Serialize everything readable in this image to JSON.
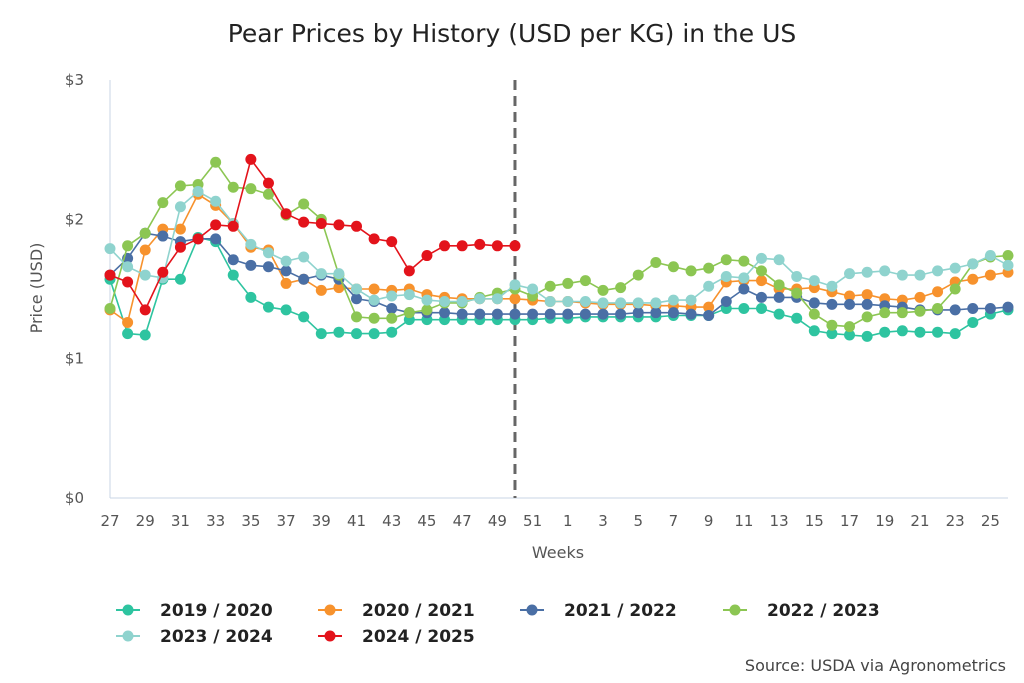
{
  "chart_data": {
    "type": "line",
    "title": "Pear Prices by History (USD per KG) in the US",
    "xlabel": "Weeks",
    "ylabel": "Price (USD)",
    "source": "Source: USDA via Agronometrics",
    "ylim": [
      0,
      3
    ],
    "y_ticks": [
      "$0",
      "$1",
      "$2",
      "$3"
    ],
    "x_weeks": [
      27,
      28,
      29,
      30,
      31,
      32,
      33,
      34,
      35,
      36,
      37,
      38,
      39,
      40,
      41,
      42,
      43,
      44,
      45,
      46,
      47,
      48,
      49,
      50,
      51,
      52,
      1,
      2,
      3,
      4,
      5,
      6,
      7,
      8,
      9,
      10,
      11,
      12,
      13,
      14,
      15,
      16,
      17,
      18,
      19,
      20,
      21,
      22,
      23,
      24,
      25,
      26
    ],
    "x_tick_labels": [
      "27",
      "29",
      "31",
      "33",
      "35",
      "37",
      "39",
      "41",
      "43",
      "45",
      "47",
      "49",
      "51",
      "1",
      "3",
      "5",
      "7",
      "9",
      "11",
      "13",
      "15",
      "17",
      "19",
      "21",
      "23",
      "25"
    ],
    "current_week_marker": 50,
    "legend_position": "bottom-left",
    "series": [
      {
        "name": "2019 / 2020",
        "color": "#2ec4a0",
        "values": [
          1.57,
          1.18,
          1.17,
          1.57,
          1.57,
          1.87,
          1.84,
          1.6,
          1.44,
          1.37,
          1.35,
          1.3,
          1.18,
          1.19,
          1.18,
          1.18,
          1.19,
          1.28,
          1.28,
          1.28,
          1.28,
          1.28,
          1.28,
          1.28,
          1.28,
          1.29,
          1.29,
          1.3,
          1.3,
          1.3,
          1.3,
          1.3,
          1.31,
          1.31,
          1.31,
          1.36,
          1.36,
          1.36,
          1.32,
          1.29,
          1.2,
          1.18,
          1.17,
          1.16,
          1.19,
          1.2,
          1.19,
          1.19,
          1.18,
          1.26,
          1.32,
          1.35
        ]
      },
      {
        "name": "2020 / 2021",
        "color": "#f7922d",
        "values": [
          1.35,
          1.26,
          1.78,
          1.93,
          1.93,
          2.18,
          2.1,
          1.97,
          1.8,
          1.78,
          1.54,
          1.57,
          1.49,
          1.51,
          1.5,
          1.5,
          1.49,
          1.5,
          1.46,
          1.44,
          1.43,
          1.43,
          1.43,
          1.43,
          1.42,
          1.41,
          1.41,
          1.4,
          1.39,
          1.39,
          1.39,
          1.38,
          1.38,
          1.37,
          1.37,
          1.55,
          1.56,
          1.56,
          1.5,
          1.5,
          1.51,
          1.48,
          1.45,
          1.46,
          1.43,
          1.42,
          1.44,
          1.48,
          1.55,
          1.57,
          1.6,
          1.62
        ]
      },
      {
        "name": "2021 / 2022",
        "color": "#4a6fa5",
        "values": [
          1.6,
          1.72,
          1.9,
          1.88,
          1.84,
          1.86,
          1.86,
          1.71,
          1.67,
          1.66,
          1.63,
          1.57,
          1.6,
          1.57,
          1.43,
          1.41,
          1.36,
          1.33,
          1.33,
          1.33,
          1.32,
          1.32,
          1.32,
          1.32,
          1.32,
          1.32,
          1.32,
          1.32,
          1.32,
          1.32,
          1.33,
          1.33,
          1.33,
          1.32,
          1.31,
          1.41,
          1.5,
          1.44,
          1.44,
          1.44,
          1.4,
          1.39,
          1.39,
          1.39,
          1.38,
          1.37,
          1.35,
          1.35,
          1.35,
          1.36,
          1.36,
          1.37
        ]
      },
      {
        "name": "2022 / 2023",
        "color": "#8cc653",
        "values": [
          1.36,
          1.81,
          1.9,
          2.12,
          2.24,
          2.25,
          2.41,
          2.23,
          2.22,
          2.18,
          2.03,
          2.11,
          2.0,
          1.6,
          1.3,
          1.29,
          1.29,
          1.33,
          1.35,
          1.4,
          1.4,
          1.44,
          1.47,
          1.5,
          1.45,
          1.52,
          1.54,
          1.56,
          1.49,
          1.51,
          1.6,
          1.69,
          1.66,
          1.63,
          1.65,
          1.71,
          1.7,
          1.63,
          1.53,
          1.47,
          1.32,
          1.24,
          1.23,
          1.3,
          1.33,
          1.33,
          1.34,
          1.36,
          1.5,
          1.68,
          1.73,
          1.74
        ]
      },
      {
        "name": "2023 / 2024",
        "color": "#8fd3ce",
        "values": [
          1.79,
          1.66,
          1.6,
          1.58,
          2.09,
          2.2,
          2.13,
          1.97,
          1.82,
          1.76,
          1.7,
          1.73,
          1.61,
          1.61,
          1.5,
          1.42,
          1.45,
          1.46,
          1.42,
          1.41,
          1.41,
          1.43,
          1.43,
          1.53,
          1.5,
          1.41,
          1.41,
          1.41,
          1.4,
          1.4,
          1.4,
          1.4,
          1.42,
          1.42,
          1.52,
          1.59,
          1.58,
          1.72,
          1.71,
          1.59,
          1.56,
          1.52,
          1.61,
          1.62,
          1.63,
          1.6,
          1.6,
          1.63,
          1.65,
          1.68,
          1.74,
          1.67
        ]
      },
      {
        "name": "2024 / 2025",
        "color": "#e3131b",
        "values": [
          1.6,
          1.55,
          1.35,
          1.62,
          1.8,
          1.86,
          1.96,
          1.95,
          2.43,
          2.26,
          2.04,
          1.98,
          1.97,
          1.96,
          1.95,
          1.86,
          1.84,
          1.63,
          1.74,
          1.81,
          1.81,
          1.82,
          1.81,
          1.81
        ]
      }
    ]
  }
}
